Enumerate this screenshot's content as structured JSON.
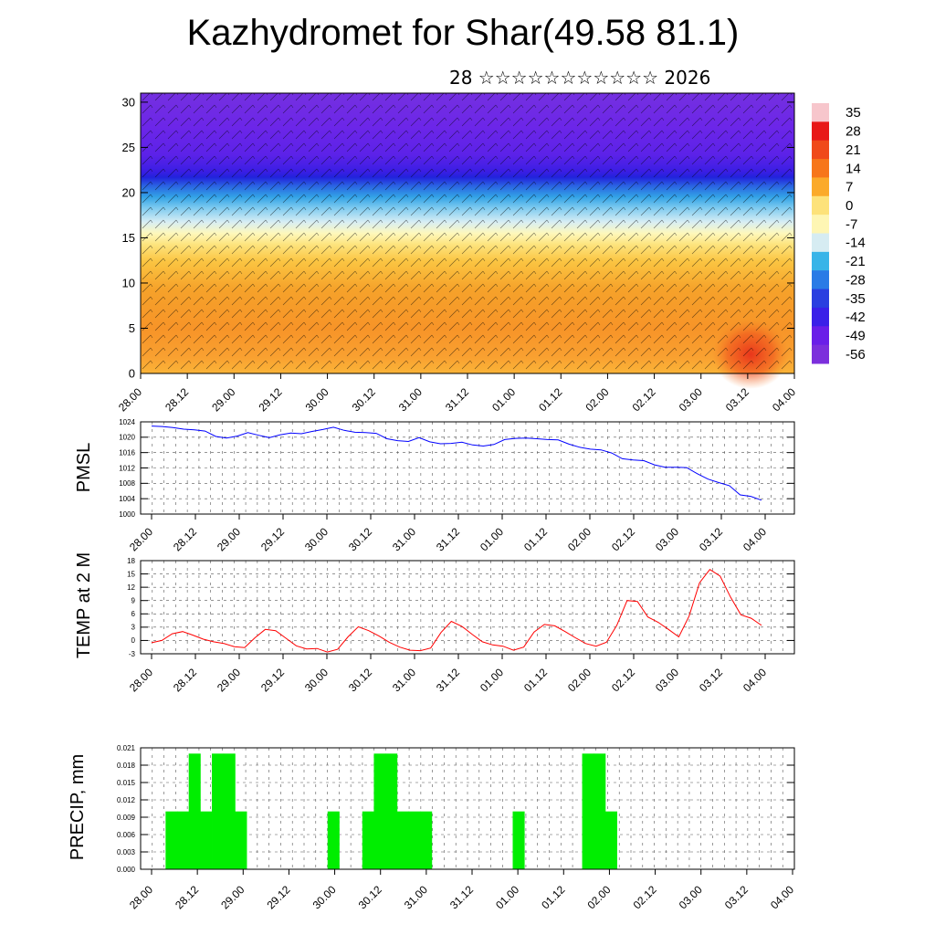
{
  "title": "Kazhydromet for Shar(49.58 81.1)",
  "subtitle": "28 ☆☆☆☆☆☆☆☆☆☆☆ 2026",
  "time_labels": [
    "28.00",
    "28.12",
    "29.00",
    "29.12",
    "30.00",
    "30.12",
    "31.00",
    "31.12",
    "01.00",
    "01.12",
    "02.00",
    "02.12",
    "03.00",
    "03.12",
    "04.00"
  ],
  "colors": {
    "pmsl_line": "#0000ff",
    "temp_line": "#ff0000",
    "precip_bar": "#00ee00",
    "axes": "#000000"
  },
  "chart_data": [
    {
      "type": "heatmap",
      "name": "vertical cross-section",
      "xlabel": "",
      "ylabel": "",
      "ylim": [
        0,
        31
      ],
      "y_ticks": [
        0,
        5,
        10,
        15,
        20,
        25,
        30
      ],
      "x_tick_labels_ref": "time_labels",
      "colorbar": {
        "labels": [
          "35",
          "28",
          "21",
          "14",
          "7",
          "0",
          "-7",
          "-14",
          "-21",
          "-28",
          "-35",
          "-42",
          "-49",
          "-56"
        ],
        "colors": [
          "#f7c6cc",
          "#e81818",
          "#f04a1a",
          "#f7761a",
          "#fbaa2a",
          "#fde27a",
          "#fef6b4",
          "#d6ecf2",
          "#38b4e8",
          "#2a7be6",
          "#2a3fe0",
          "#3a20e8",
          "#6a1ee8",
          "#7c2fdc"
        ]
      }
    },
    {
      "type": "line",
      "name": "pmsl",
      "title": "",
      "xlabel": "",
      "ylabel": "PMSL",
      "ylim": [
        1000,
        1024
      ],
      "y_ticks": [
        1000,
        1004,
        1008,
        1012,
        1016,
        1020,
        1024
      ],
      "values": [
        1022.9,
        1022.8,
        1022.5,
        1022.1,
        1021.9,
        1021.6,
        1020.2,
        1019.8,
        1020.3,
        1021.2,
        1020.5,
        1019.9,
        1020.6,
        1021.1,
        1020.9,
        1021.5,
        1022.0,
        1022.6,
        1021.8,
        1021.3,
        1021.2,
        1021.0,
        1019.6,
        1019.1,
        1018.9,
        1019.9,
        1018.8,
        1018.3,
        1018.4,
        1018.7,
        1018.0,
        1017.7,
        1018.1,
        1019.4,
        1019.7,
        1019.8,
        1019.6,
        1019.4,
        1019.3,
        1018.2,
        1017.4,
        1016.9,
        1016.7,
        1015.9,
        1014.4,
        1014.1,
        1013.9,
        1012.8,
        1012.2,
        1012.2,
        1012.1,
        1010.5,
        1009.1,
        1008.2,
        1007.4,
        1005.0,
        1004.6,
        1003.6
      ]
    },
    {
      "type": "line",
      "name": "temp_2m",
      "title": "",
      "xlabel": "",
      "ylabel": "TEMP at 2 M",
      "ylim": [
        -3,
        18
      ],
      "y_ticks": [
        -3,
        0,
        3,
        6,
        9,
        12,
        15,
        18
      ],
      "values": [
        -0.5,
        0.0,
        1.5,
        2.0,
        1.2,
        0.3,
        -0.3,
        -0.7,
        -1.4,
        -1.6,
        0.6,
        2.5,
        2.2,
        0.5,
        -1.2,
        -1.9,
        -1.8,
        -2.6,
        -2.0,
        0.8,
        3.1,
        2.2,
        1.0,
        -0.4,
        -1.5,
        -2.2,
        -2.3,
        -1.7,
        1.8,
        4.3,
        3.2,
        1.4,
        -0.3,
        -1.0,
        -1.3,
        -2.2,
        -1.5,
        1.9,
        3.6,
        3.3,
        2.0,
        0.6,
        -0.7,
        -1.3,
        -0.4,
        3.4,
        9.0,
        8.8,
        5.3,
        4.1,
        2.5,
        0.8,
        5.5,
        13.0,
        16.0,
        14.5,
        9.8,
        5.8,
        5.0,
        3.4
      ]
    },
    {
      "type": "bar",
      "name": "precip",
      "title": "",
      "xlabel": "",
      "ylabel": "PRECIP, mm",
      "ylim": [
        0,
        0.021
      ],
      "y_ticks": [
        "0.000",
        "0.003",
        "0.006",
        "0.009",
        "0.012",
        "0.015",
        "0.018",
        "0.021"
      ],
      "values": [
        0,
        0,
        0.01,
        0.01,
        0.02,
        0.01,
        0.02,
        0.02,
        0.01,
        0,
        0,
        0,
        0,
        0,
        0,
        0,
        0.01,
        0,
        0,
        0.01,
        0.02,
        0.02,
        0.01,
        0.01,
        0.01,
        0,
        0,
        0,
        0,
        0,
        0,
        0,
        0.01,
        0,
        0,
        0,
        0,
        0,
        0.02,
        0.02,
        0.01,
        0,
        0,
        0,
        0,
        0,
        0,
        0,
        0,
        0,
        0,
        0,
        0,
        0,
        0,
        0,
        0,
        0
      ]
    }
  ]
}
